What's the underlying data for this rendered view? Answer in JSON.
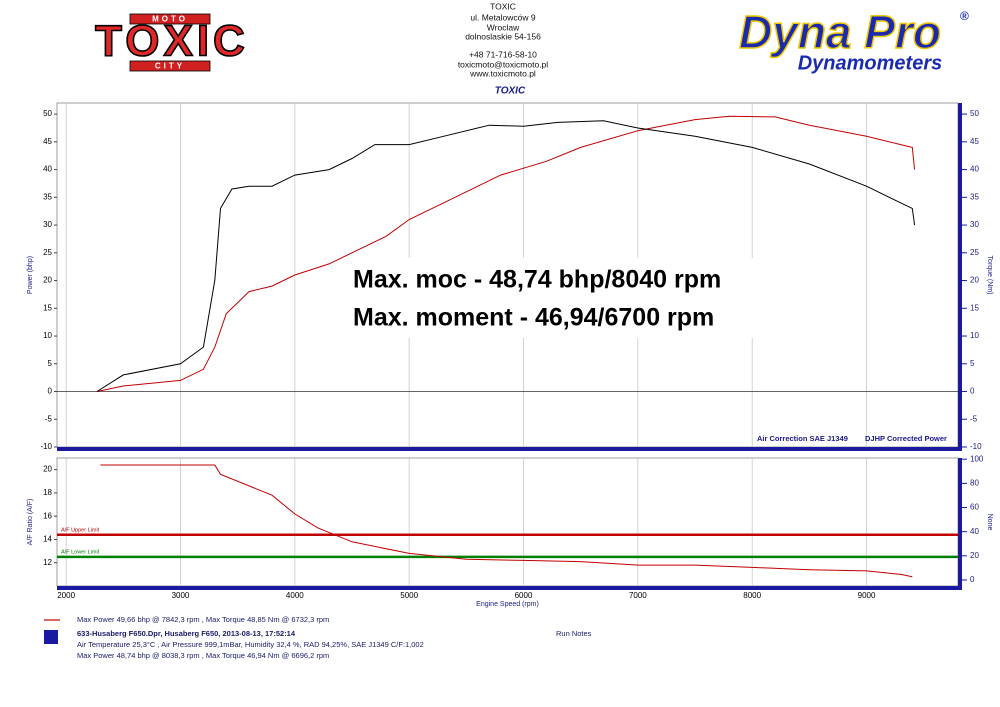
{
  "header": {
    "logo": {
      "top": "MOTO",
      "main": "TOXIC",
      "bottom": "CITY"
    },
    "address": [
      "TOXIC",
      "ul. Metalowców 9",
      "Wroclaw",
      "dolnoslaskie 54-156",
      "+48 71-716-58-10",
      "toxicmoto@toxicmoto.pl",
      "www.toxicmoto.pl"
    ],
    "shop": "TOXIC",
    "brand": {
      "name": "Dyna Pro",
      "reg": "®",
      "sub": "Dynamometers"
    }
  },
  "chart_data": [
    {
      "type": "line",
      "y_label": "Power (bhp)",
      "y2_label": "Torque (Nm)",
      "annotations": [
        "Max. moc - 48,74 bhp/8040 rpm",
        "Max. moment - 46,94/6700 rpm"
      ],
      "notes": [
        "Air Correction SAE  J1349",
        "DJHP Corrected Power"
      ],
      "xlim": [
        1920,
        9800
      ],
      "xticks": [
        2000,
        3000,
        4000,
        5000,
        6000,
        7000,
        8000,
        9000
      ],
      "ylim": [
        -10,
        52
      ],
      "yticks": [
        -10,
        -5,
        0,
        5,
        10,
        15,
        20,
        25,
        30,
        35,
        40,
        45,
        50
      ],
      "y2lim": [
        -10,
        52
      ],
      "y2ticks": [
        -10,
        -5,
        0,
        5,
        10,
        15,
        20,
        25,
        30,
        35,
        40,
        45,
        50
      ],
      "series": [
        {
          "color": "#c00000",
          "x": [
            2270,
            2500,
            3000,
            3200,
            3300,
            3400,
            3600,
            3800,
            4000,
            4300,
            4500,
            4800,
            5000,
            5300,
            5800,
            6200,
            6500,
            7000,
            7500,
            7800,
            8200,
            8500,
            9000,
            9300,
            9400,
            9420
          ],
          "values": [
            0,
            1,
            2,
            4,
            8,
            14,
            18,
            19,
            21,
            23,
            25,
            28,
            31,
            34,
            39,
            41.5,
            44,
            47,
            49,
            49.6,
            49.5,
            48,
            46,
            44.5,
            44,
            40
          ]
        },
        {
          "color": "#000000",
          "axis": "y2",
          "x": [
            2270,
            2500,
            3000,
            3200,
            3300,
            3350,
            3450,
            3600,
            3800,
            4000,
            4300,
            4500,
            4700,
            5000,
            5300,
            5700,
            6000,
            6300,
            6700,
            7000,
            7500,
            8000,
            8500,
            9000,
            9300,
            9400,
            9420
          ],
          "values": [
            0,
            3,
            5,
            8,
            20,
            33,
            36.5,
            37,
            37,
            39,
            40,
            42,
            44.5,
            44.5,
            46,
            48,
            47.8,
            48.5,
            48.8,
            47.5,
            46,
            44,
            41,
            37,
            34,
            33,
            30
          ]
        }
      ]
    },
    {
      "type": "line",
      "y_label": "A/F Ratio (A/F)",
      "y2_label": "None",
      "x_label": "Engine Speed (rpm)",
      "xlim": [
        1920,
        9800
      ],
      "xticks": [
        2000,
        3000,
        4000,
        5000,
        6000,
        7000,
        8000,
        9000
      ],
      "ylim": [
        10,
        21
      ],
      "yticks": [
        12,
        14,
        16,
        18,
        20
      ],
      "y2lim": [
        -5,
        101
      ],
      "y2ticks": [
        0,
        20,
        40,
        60,
        80,
        100
      ],
      "limits": [
        {
          "name": "A/F Upper Limit",
          "value": 14.4,
          "color": "#c00000"
        },
        {
          "name": "A/F Lower Limit",
          "value": 12.5,
          "color": "#008000"
        }
      ],
      "series": [
        {
          "color": "#c00000",
          "x": [
            2300,
            3300,
            3350,
            3600,
            3800,
            4000,
            4200,
            4500,
            5000,
            5500,
            6000,
            6500,
            7000,
            7500,
            8000,
            8500,
            9000,
            9300,
            9400
          ],
          "values": [
            20.4,
            20.4,
            19.6,
            18.6,
            17.8,
            16.2,
            15,
            13.8,
            12.8,
            12.3,
            12.2,
            12.1,
            11.8,
            11.8,
            11.6,
            11.4,
            11.3,
            11,
            10.8
          ]
        }
      ]
    }
  ],
  "footer": {
    "legend_1": "Max Power 49,66 bhp @ 7842,3 rpm , Max Torque 48,85 Nm @ 6732,3 rpm",
    "legend_2": [
      "633-Husaberg F650.Dpr,   Husaberg F650,   2013-08-13,   17:52:14",
      "Air Temperature 25,3°C , Air Pressure 999,1mBar, Humidity 32,4 %, RAD 94,25%,   SAE J1349  C/F:1,002",
      "Max Power 48,74 bhp @ 8038,3 rpm , Max Torque 46,94 Nm @ 6696,2 rpm"
    ],
    "run_notes": "Run Notes"
  }
}
